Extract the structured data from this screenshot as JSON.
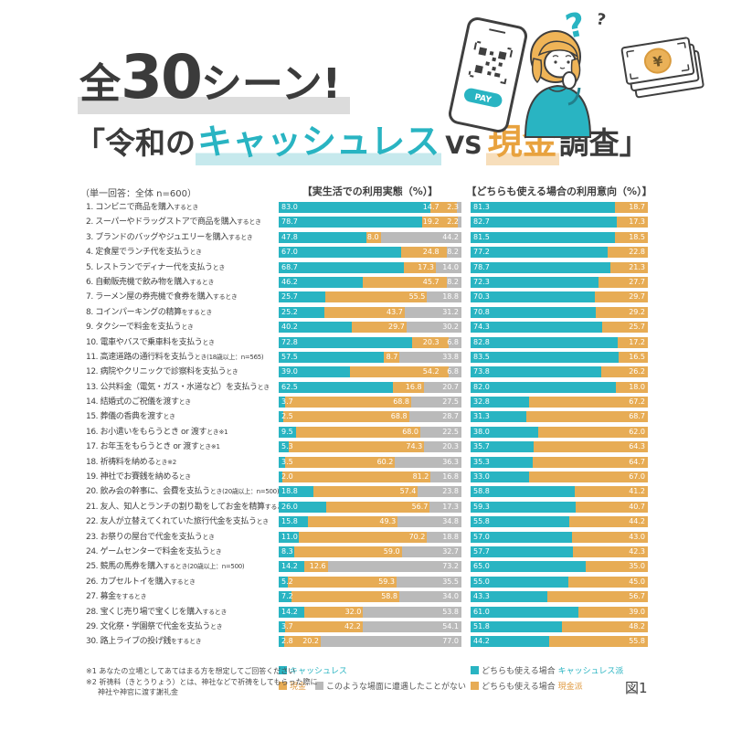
{
  "header": {
    "line1": {
      "zen": "全",
      "num": "30",
      "scene": "シーン!"
    },
    "line2": {
      "prefix": "「令和の",
      "cashless": "キャッシュレス",
      "vs": "VS",
      "cash": "現金",
      "suffix": "調査」"
    },
    "illustration": {
      "pay_label": "PAY",
      "yen_symbol": "¥",
      "question_mark": "?"
    }
  },
  "note": "（単一回答：全体 n=600）",
  "columns": {
    "left": "【実生活での利用実態（%）】",
    "right": "【どちらも使える場合の利用意向（%）】"
  },
  "chart_data": {
    "type": "bar",
    "subtype": "horizontal-stacked-pair",
    "xlim": [
      0,
      100
    ],
    "unit": "%",
    "categories": [
      {
        "label": "1. コンビニで商品を購入",
        "suffix": "するとき"
      },
      {
        "label": "2. スーパーやドラッグストアで商品を購入",
        "suffix": "するとき"
      },
      {
        "label": "3. ブランドのバッグやジュエリーを購入",
        "suffix": "するとき"
      },
      {
        "label": "4. 定食屋でランチ代を支払う",
        "suffix": "とき"
      },
      {
        "label": "5. レストランでディナー代を支払う",
        "suffix": "とき"
      },
      {
        "label": "6. 自動販売機で飲み物を購入",
        "suffix": "するとき"
      },
      {
        "label": "7. ラーメン屋の券売機で食券を購入",
        "suffix": "するとき"
      },
      {
        "label": "8. コインパーキングの精算",
        "suffix": "をするとき"
      },
      {
        "label": "9. タクシーで料金を支払う",
        "suffix": "とき"
      },
      {
        "label": "10. 電車やバスで乗車料を支払う",
        "suffix": "とき"
      },
      {
        "label": "11. 高速道路の通行料を支払う",
        "suffix": "とき(18歳以上：n=565)"
      },
      {
        "label": "12. 病院やクリニックで診察料を支払う",
        "suffix": "とき"
      },
      {
        "label": "13. 公共料金（電気・ガス・水道など）を支払う",
        "suffix": "とき"
      },
      {
        "label": "14. 結婚式のご祝儀を渡す",
        "suffix": "とき"
      },
      {
        "label": "15. 葬儀の香典を渡す",
        "suffix": "とき"
      },
      {
        "label": "16. お小遣いをもらうとき or 渡す",
        "suffix": "とき※1"
      },
      {
        "label": "17. お年玉をもらうとき or 渡す",
        "suffix": "とき※1"
      },
      {
        "label": "18. 祈祷料を納める",
        "suffix": "とき※2"
      },
      {
        "label": "19. 神社でお賽銭を納める",
        "suffix": "とき"
      },
      {
        "label": "20. 飲み会の幹事に、会費を支払う",
        "suffix": "とき(20歳以上：n=500)"
      },
      {
        "label": "21. 友人、知人とランチの割り勘をしてお金を精算",
        "suffix": "するとき"
      },
      {
        "label": "22. 友人が立替えてくれていた旅行代金を支払う",
        "suffix": "とき"
      },
      {
        "label": "23. お祭りの屋台で代金を支払う",
        "suffix": "とき"
      },
      {
        "label": "24. ゲームセンターで料金を支払う",
        "suffix": "とき"
      },
      {
        "label": "25. 競馬の馬券を購入",
        "suffix": "するとき(20歳以上：n=500)"
      },
      {
        "label": "26. カプセルトイを購入",
        "suffix": "するとき"
      },
      {
        "label": "27. 募金",
        "suffix": "をするとき"
      },
      {
        "label": "28. 宝くじ売り場で宝くじを購入",
        "suffix": "するとき"
      },
      {
        "label": "29. 文化祭・学園祭で代金を支払う",
        "suffix": "とき"
      },
      {
        "label": "30. 路上ライブの投げ銭",
        "suffix": "をするとき"
      }
    ],
    "charts": [
      {
        "title": "【実生活での利用実態（%）】",
        "series": [
          {
            "name": "キャッシュレス",
            "color": "#29b4c2",
            "values": [
              83.0,
              78.7,
              47.8,
              67.0,
              68.7,
              46.2,
              25.7,
              25.2,
              40.2,
              72.8,
              57.5,
              39.0,
              62.5,
              3.7,
              2.5,
              9.5,
              5.3,
              3.5,
              2.0,
              18.8,
              26.0,
              15.8,
              11.0,
              8.3,
              14.2,
              5.2,
              7.2,
              14.2,
              3.7,
              2.8
            ]
          },
          {
            "name": "現金",
            "color": "#e7ac55",
            "values": [
              14.7,
              19.2,
              8.0,
              24.8,
              17.3,
              45.7,
              55.5,
              43.7,
              29.7,
              20.3,
              8.7,
              54.2,
              16.8,
              68.8,
              68.8,
              68.0,
              74.3,
              60.2,
              81.2,
              57.4,
              56.7,
              49.3,
              70.2,
              59.0,
              12.6,
              59.3,
              58.8,
              32.0,
              42.2,
              20.2
            ]
          },
          {
            "name": "このような場面に遭遇したことがない",
            "color": "#bababa",
            "values": [
              2.3,
              2.2,
              44.2,
              8.2,
              14.0,
              8.2,
              18.8,
              31.2,
              30.2,
              6.8,
              33.8,
              6.8,
              20.7,
              27.5,
              28.7,
              22.5,
              20.3,
              36.3,
              16.8,
              23.8,
              17.3,
              34.8,
              18.8,
              32.7,
              73.2,
              35.5,
              34.0,
              53.8,
              54.1,
              77.0
            ]
          }
        ]
      },
      {
        "title": "【どちらも使える場合の利用意向（%）】",
        "series": [
          {
            "name": "どちらも使える場合 キャッシュレス派",
            "color": "#29b4c2",
            "values": [
              81.3,
              82.7,
              81.5,
              77.2,
              78.7,
              72.3,
              70.3,
              70.8,
              74.3,
              82.8,
              83.5,
              73.8,
              82.0,
              32.8,
              31.3,
              38.0,
              35.7,
              35.3,
              33.0,
              58.8,
              59.3,
              55.8,
              57.0,
              57.7,
              65.0,
              55.0,
              43.3,
              61.0,
              51.8,
              44.2
            ]
          },
          {
            "name": "どちらも使える場合 現金派",
            "color": "#e7ac55",
            "values": [
              18.7,
              17.3,
              18.5,
              22.8,
              21.3,
              27.7,
              29.7,
              29.2,
              25.7,
              17.2,
              16.5,
              26.2,
              18.0,
              67.2,
              68.7,
              62.0,
              64.3,
              64.7,
              67.0,
              41.2,
              40.7,
              44.2,
              43.0,
              42.3,
              35.0,
              45.0,
              56.7,
              39.0,
              48.2,
              55.8
            ]
          }
        ]
      }
    ]
  },
  "legend_left": {
    "cashless": {
      "label": "キャッシュレス",
      "color": "#29b4c2"
    },
    "cash": {
      "label": "現金",
      "color": "#e7ac55"
    },
    "never": {
      "label": "このような場面に遭遇したことがない",
      "color": "#bababa"
    }
  },
  "legend_right": {
    "cashless": {
      "prefix": "どちらも使える場合",
      "label": "キャッシュレス派",
      "color": "#29b4c2"
    },
    "cash": {
      "prefix": "どちらも使える場合",
      "label": "現金派",
      "color": "#e7ac55"
    }
  },
  "footnotes": {
    "f1": "※1 あなたの立場としてあてはまる方を想定してご回答ください",
    "f2": "※2 祈祷料（きとうりょう）とは、神社などで祈祷をしてもらった際に",
    "f2b": "神社や神官に渡す謝礼金"
  },
  "figure_label": "図1",
  "colors": {
    "teal": "#29b4c2",
    "orange": "#e7ac55",
    "gray": "#bababa",
    "dark": "#3f3f3f",
    "highlight_gray": "#dcdcdc",
    "highlight_teal": "#c6e9ed",
    "highlight_orange": "#f7debb"
  }
}
